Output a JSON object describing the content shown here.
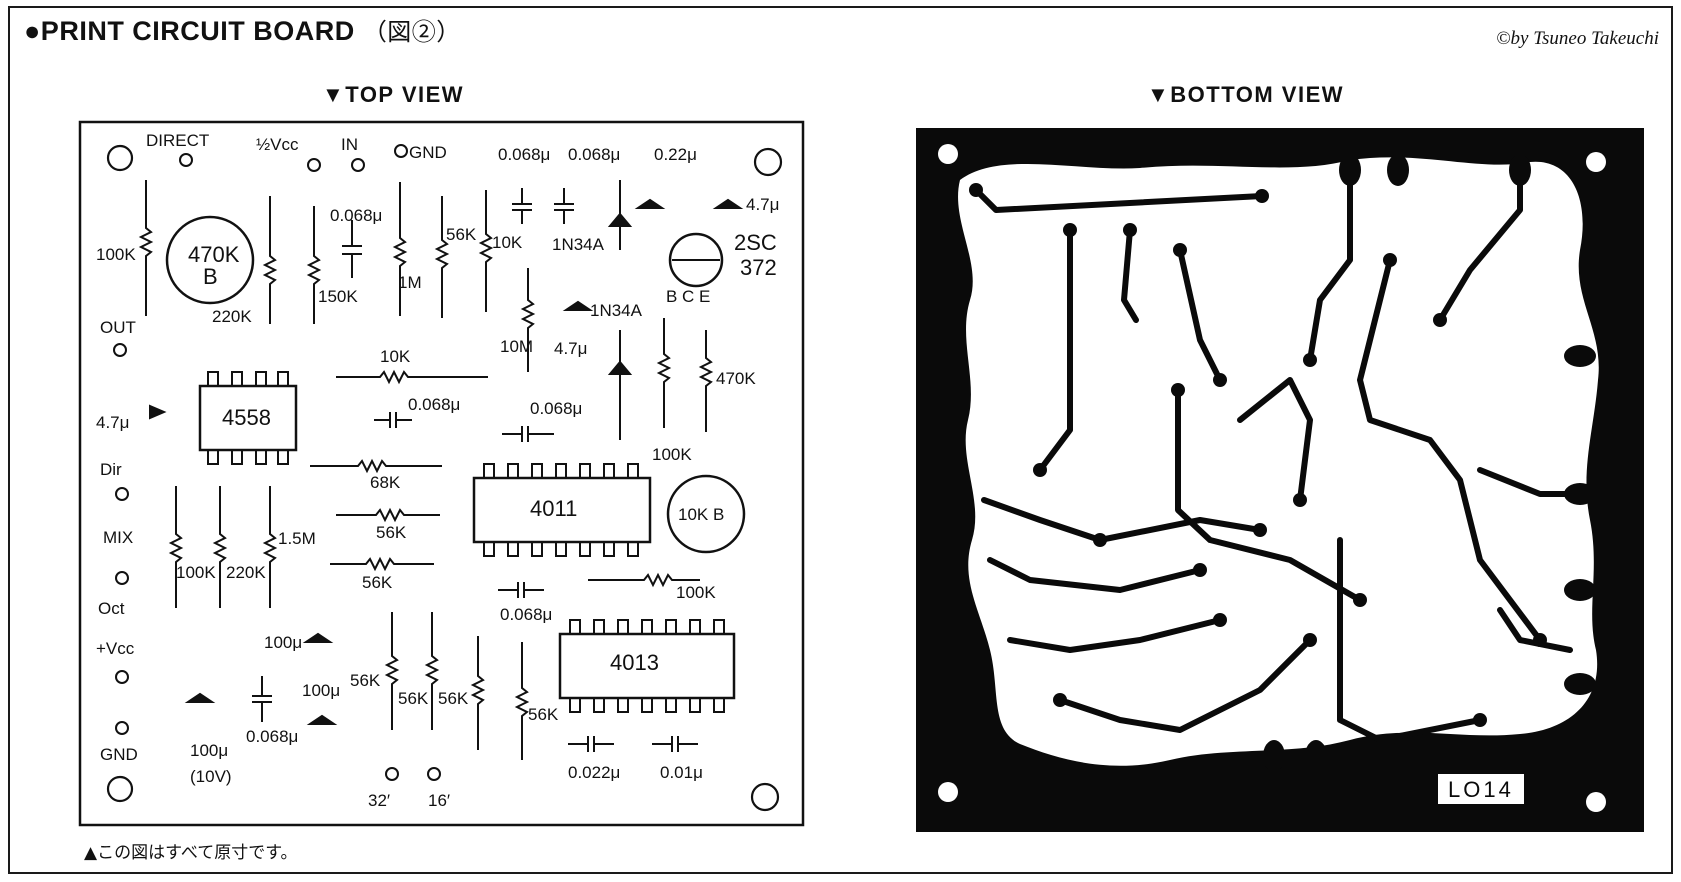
{
  "header": {
    "title": "●PRINT CIRCUIT BOARD",
    "figure_ref": "（図②）",
    "credit": "©by Tsuneo Takeuchi"
  },
  "views": {
    "top_title": "▼TOP VIEW",
    "bottom_title": "▼BOTTOM VIEW"
  },
  "caption": "▲この図はすべて原寸です。",
  "top_view": {
    "terminals": [
      "DIRECT",
      "½Vcc",
      "IN",
      "GND",
      "OUT",
      "Dir",
      "MIX",
      "Oct",
      "+Vcc",
      "GND",
      "32′",
      "16′"
    ],
    "ics": [
      "4558",
      "4011",
      "4013"
    ],
    "pots": [
      "470K\nB",
      "10K B"
    ],
    "transistor": {
      "label_top": "2SC",
      "label_bottom": "372",
      "pins": "B C E"
    },
    "components": [
      "100K",
      "220K",
      "150K",
      "0.068μ",
      "1M",
      "56K",
      "10K",
      "0.068μ",
      "0.068μ",
      "0.22μ",
      "4.7μ",
      "1N34A",
      "1N34A",
      "4.7μ",
      "10M",
      "10K",
      "0.068μ",
      "0.068μ",
      "470K",
      "100K",
      "4.7μ",
      "68K",
      "56K",
      "56K",
      "100K",
      "220K",
      "1.5M",
      "0.068μ",
      "100K",
      "100μ",
      "100μ",
      "100μ",
      "(10V)",
      "0.068μ",
      "56K",
      "56K",
      "56K",
      "56K",
      "0.022μ",
      "0.01μ"
    ]
  },
  "bottom_view": {
    "board_code": "LO14"
  }
}
